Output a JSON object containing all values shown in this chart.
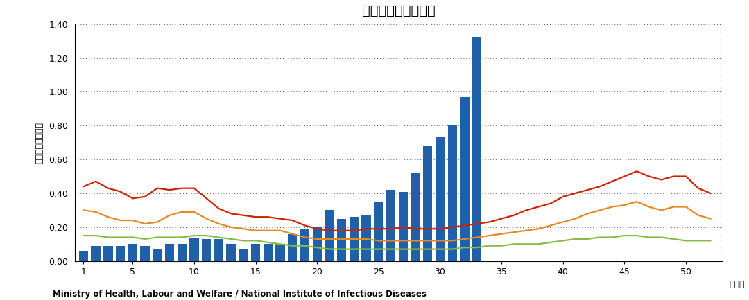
{
  "title": "マイコプラズマ肂炎",
  "ylabel": "定点当たり報告数",
  "xlabel": "（週）",
  "footnote": "Ministry of Health, Labour and Welfare / National Institute of Infectious Diseases",
  "bar_color": "#2060a8",
  "line_colors": [
    "#cc2200",
    "#e88820",
    "#88bb44"
  ],
  "ylim": [
    0.0,
    1.4
  ],
  "yticks": [
    0.0,
    0.2,
    0.4,
    0.6,
    0.8,
    1.0,
    1.2,
    1.4
  ],
  "xticks": [
    1,
    5,
    10,
    15,
    20,
    25,
    30,
    35,
    40,
    45,
    50
  ],
  "bar_weeks": [
    1,
    2,
    3,
    4,
    5,
    6,
    7,
    8,
    9,
    10,
    11,
    12,
    13,
    14,
    15,
    16,
    17,
    18,
    19,
    20,
    21,
    22,
    23,
    24,
    25,
    26,
    27,
    28,
    29,
    30,
    31,
    32,
    33
  ],
  "bar_values": [
    0.06,
    0.09,
    0.09,
    0.09,
    0.1,
    0.09,
    0.07,
    0.1,
    0.1,
    0.14,
    0.13,
    0.13,
    0.1,
    0.07,
    0.1,
    0.1,
    0.1,
    0.16,
    0.19,
    0.2,
    0.3,
    0.25,
    0.26,
    0.27,
    0.35,
    0.42,
    0.41,
    0.52,
    0.68,
    0.73,
    0.8,
    0.97,
    1.32
  ],
  "line_weeks": [
    1,
    2,
    3,
    4,
    5,
    6,
    7,
    8,
    9,
    10,
    11,
    12,
    13,
    14,
    15,
    16,
    17,
    18,
    19,
    20,
    21,
    22,
    23,
    24,
    25,
    26,
    27,
    28,
    29,
    30,
    31,
    32,
    33,
    34,
    35,
    36,
    37,
    38,
    39,
    40,
    41,
    42,
    43,
    44,
    45,
    46,
    47,
    48,
    49,
    50,
    51,
    52
  ],
  "red_line": [
    0.44,
    0.47,
    0.43,
    0.41,
    0.37,
    0.38,
    0.43,
    0.42,
    0.43,
    0.43,
    0.37,
    0.31,
    0.28,
    0.27,
    0.26,
    0.26,
    0.25,
    0.24,
    0.21,
    0.19,
    0.18,
    0.18,
    0.18,
    0.19,
    0.19,
    0.19,
    0.2,
    0.19,
    0.19,
    0.19,
    0.2,
    0.21,
    0.22,
    0.23,
    0.25,
    0.27,
    0.3,
    0.32,
    0.34,
    0.38,
    0.4,
    0.42,
    0.44,
    0.47,
    0.5,
    0.53,
    0.5,
    0.48,
    0.5,
    0.5,
    0.43,
    0.4
  ],
  "orange_line": [
    0.3,
    0.29,
    0.26,
    0.24,
    0.24,
    0.22,
    0.23,
    0.27,
    0.29,
    0.29,
    0.25,
    0.22,
    0.2,
    0.19,
    0.18,
    0.18,
    0.18,
    0.16,
    0.14,
    0.13,
    0.13,
    0.13,
    0.13,
    0.13,
    0.12,
    0.12,
    0.12,
    0.12,
    0.12,
    0.12,
    0.12,
    0.13,
    0.14,
    0.15,
    0.16,
    0.17,
    0.18,
    0.19,
    0.21,
    0.23,
    0.25,
    0.28,
    0.3,
    0.32,
    0.33,
    0.35,
    0.32,
    0.3,
    0.32,
    0.32,
    0.27,
    0.25
  ],
  "green_line": [
    0.15,
    0.15,
    0.14,
    0.14,
    0.14,
    0.13,
    0.14,
    0.14,
    0.14,
    0.15,
    0.15,
    0.14,
    0.13,
    0.12,
    0.12,
    0.11,
    0.1,
    0.09,
    0.09,
    0.08,
    0.07,
    0.07,
    0.07,
    0.07,
    0.07,
    0.07,
    0.07,
    0.07,
    0.07,
    0.07,
    0.07,
    0.08,
    0.08,
    0.09,
    0.09,
    0.1,
    0.1,
    0.1,
    0.11,
    0.12,
    0.13,
    0.13,
    0.14,
    0.14,
    0.15,
    0.15,
    0.14,
    0.14,
    0.13,
    0.12,
    0.12,
    0.12
  ]
}
